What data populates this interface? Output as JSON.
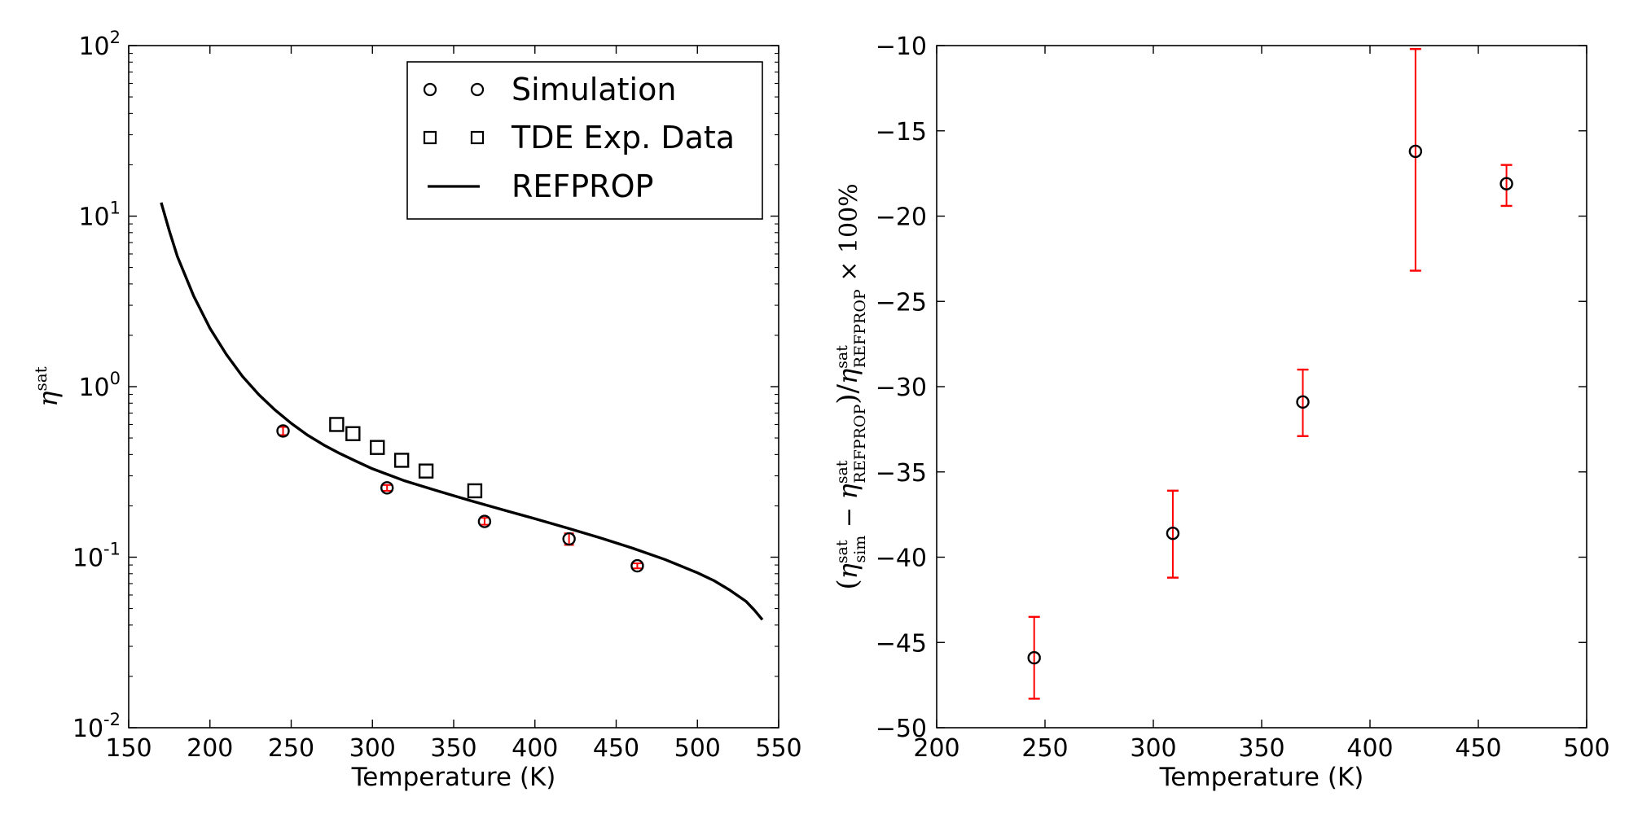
{
  "chart_data": [
    {
      "type": "scatter",
      "xlabel": "Temperature (K)",
      "ylabel": "η^sat",
      "ylabel_base": "η",
      "ylabel_sup": "sat",
      "yscale": "log",
      "xlim": [
        150,
        550
      ],
      "ylim": [
        0.01,
        100
      ],
      "x_ticks": [
        "150",
        "200",
        "250",
        "300",
        "350",
        "400",
        "450",
        "500",
        "550"
      ],
      "y_ticks": [
        {
          "base": "10",
          "exp": "-2"
        },
        {
          "base": "10",
          "exp": "-1"
        },
        {
          "base": "10",
          "exp": "0"
        },
        {
          "base": "10",
          "exp": "1"
        },
        {
          "base": "10",
          "exp": "2"
        }
      ],
      "legend_position": "top-right",
      "series": [
        {
          "name": "Simulation",
          "marker": "circle",
          "color": "#000000",
          "errorbar_color": "#ff0000",
          "x": [
            245,
            309,
            369,
            421,
            463
          ],
          "y": [
            0.55,
            0.255,
            0.162,
            0.128,
            0.089
          ],
          "yerr_low": [
            0.52,
            0.245,
            0.155,
            0.118,
            0.086
          ],
          "yerr_high": [
            0.58,
            0.265,
            0.17,
            0.138,
            0.092
          ]
        },
        {
          "name": "TDE Exp. Data",
          "marker": "square",
          "color": "#000000",
          "x": [
            278,
            288,
            303,
            318,
            333,
            363
          ],
          "y": [
            0.6,
            0.53,
            0.44,
            0.37,
            0.32,
            0.245
          ]
        },
        {
          "name": "REFPROP",
          "line": "solid",
          "color": "#000000",
          "x": [
            170,
            175,
            180,
            190,
            200,
            210,
            220,
            230,
            240,
            250,
            260,
            270,
            280,
            290,
            300,
            320,
            340,
            360,
            380,
            400,
            420,
            440,
            460,
            480,
            500,
            510,
            520,
            530,
            535,
            540
          ],
          "y": [
            12.0,
            8.2,
            5.8,
            3.4,
            2.2,
            1.55,
            1.15,
            0.9,
            0.73,
            0.61,
            0.52,
            0.455,
            0.405,
            0.365,
            0.33,
            0.28,
            0.245,
            0.215,
            0.19,
            0.168,
            0.148,
            0.13,
            0.113,
            0.097,
            0.081,
            0.073,
            0.064,
            0.055,
            0.049,
            0.043
          ]
        }
      ]
    },
    {
      "type": "scatter",
      "xlabel": "Temperature (K)",
      "ylabel": "(η_sim^sat − η_REFPROP^sat)/η_REFPROP^sat × 100%",
      "xlim": [
        200,
        500
      ],
      "ylim": [
        -50,
        -10
      ],
      "x_ticks": [
        "200",
        "250",
        "300",
        "350",
        "400",
        "450",
        "500"
      ],
      "y_ticks": [
        "−50",
        "−45",
        "−40",
        "−35",
        "−30",
        "−25",
        "−20",
        "−15",
        "−10"
      ],
      "series": [
        {
          "marker": "circle",
          "color": "#000000",
          "errorbar_color": "#ff0000",
          "x": [
            245,
            309,
            369,
            421,
            463
          ],
          "y": [
            -45.9,
            -38.6,
            -30.9,
            -16.2,
            -18.1
          ],
          "yerr_low": [
            -48.3,
            -41.2,
            -32.9,
            -23.2,
            -19.4
          ],
          "yerr_high": [
            -43.5,
            -36.1,
            -29.0,
            -10.2,
            -17.0
          ]
        }
      ]
    }
  ]
}
